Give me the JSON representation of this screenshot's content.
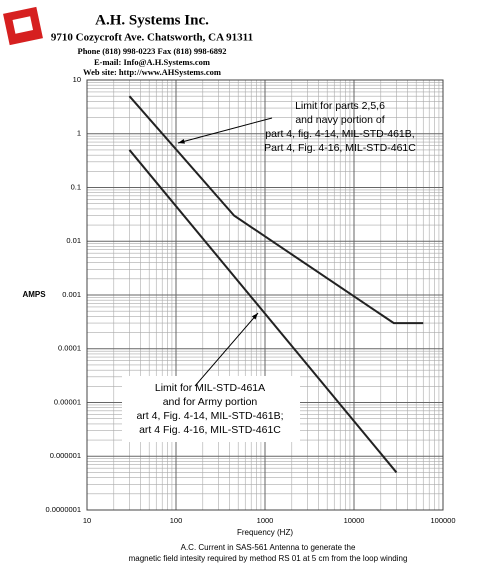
{
  "header": {
    "company": "A.H. Systems Inc.",
    "address": "9710 Cozycroft Ave. Chatsworth, CA 91311",
    "phone": "Phone (818) 998-0223 Fax (818) 998-6892",
    "email": "E-mail: Info@A.H.Systems.com",
    "web": "Web site: http://www.AHSystems.com"
  },
  "chart_data": {
    "type": "line",
    "x_label": "Frequency (HZ)",
    "y_label": "AMPS",
    "caption": [
      "A.C. Current in SAS-561 Antenna to generate the",
      "magnetic field intesity required by method RS 01 at 5 cm from the loop winding"
    ],
    "log_x": true,
    "log_y": true,
    "grid": true,
    "minor_grid": true,
    "xlim": [
      10,
      100000
    ],
    "xticks": [
      10,
      100,
      1000,
      10000,
      100000
    ],
    "ylim": [
      1e-07,
      10
    ],
    "yticks": [
      {
        "value": 1e-07,
        "label": "0.0000001"
      },
      1e-06,
      1e-05,
      0.0001,
      0.001,
      0.01,
      0.1,
      1,
      10
    ],
    "series": [
      {
        "color": "#222222",
        "x": [
          30,
          450,
          28000,
          60000
        ],
        "values": [
          5,
          0.03,
          0.0003,
          0.0003
        ]
      },
      {
        "color": "#222222",
        "x": [
          30,
          30000
        ],
        "values": [
          0.5,
          5e-07
        ]
      }
    ],
    "annotations": [
      {
        "lines": [
          "Limit for parts 2,5,6",
          "and navy portion of",
          "part 4, fig. 4-14, MIL-STD-461B,",
          "Part 4, Fig. 4-16, MIL-STD-461C"
        ]
      },
      {
        "lines": [
          "Limit for MIL-STD-461A",
          "and for Army portion",
          "art 4, Fig. 4-14, MIL-STD-461B;",
          "art 4 Fig. 4-16, MIL-STD-461C"
        ]
      }
    ]
  }
}
